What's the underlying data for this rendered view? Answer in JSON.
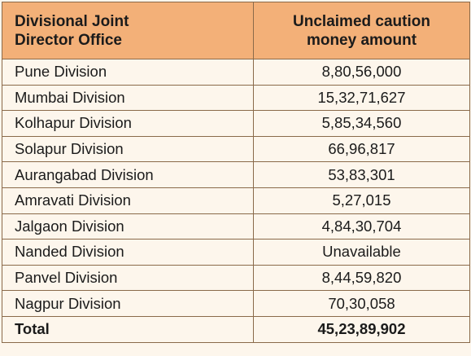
{
  "header": {
    "office_line1": "Divisional Joint",
    "office_line2": "Director Office",
    "amount_line1": "Unclaimed caution",
    "amount_line2": "money amount"
  },
  "rows": [
    {
      "division": "Pune Division",
      "amount": "8,80,56,000"
    },
    {
      "division": "Mumbai Division",
      "amount": "15,32,71,627"
    },
    {
      "division": "Kolhapur Division",
      "amount": "5,85,34,560"
    },
    {
      "division": "Solapur Division",
      "amount": "66,96,817"
    },
    {
      "division": "Aurangabad Division",
      "amount": "53,83,301"
    },
    {
      "division": "Amravati Division",
      "amount": "5,27,015"
    },
    {
      "division": "Jalgaon Division",
      "amount": "4,84,30,704"
    },
    {
      "division": "Nanded Division",
      "amount": "Unavailable"
    },
    {
      "division": "Panvel Division",
      "amount": "8,44,59,820"
    },
    {
      "division": "Nagpur Division",
      "amount": "70,30,058"
    }
  ],
  "total": {
    "label": "Total",
    "amount": "45,23,89,902"
  },
  "colors": {
    "header_bg": "#f3b078",
    "body_bg": "#fdf6ec",
    "border": "#8a6a4a"
  }
}
